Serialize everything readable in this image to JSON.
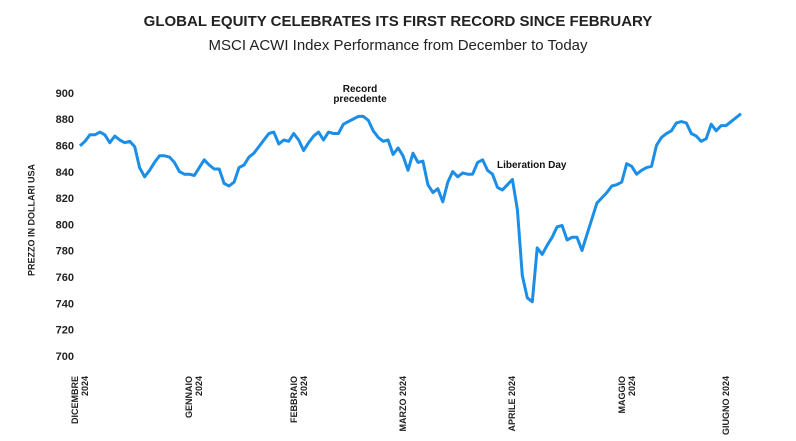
{
  "chart_data": {
    "type": "line",
    "title": "GLOBAL EQUITY CELEBRATES ITS FIRST RECORD SINCE FEBRUARY",
    "subtitle": "MSCI ACWI Index Performance from December to Today",
    "y_label": "PREZZO IN DOLLARI USA",
    "annotations": [
      "Record precedente",
      "Liberation Day"
    ],
    "categories": [
      "DICEMBRE 2024",
      null,
      null,
      null,
      null,
      null,
      null,
      null,
      null,
      null,
      null,
      null,
      null,
      null,
      null,
      null,
      null,
      null,
      null,
      null,
      null,
      null,
      null,
      "GENNAIO 2024",
      null,
      null,
      null,
      null,
      null,
      null,
      null,
      null,
      null,
      null,
      null,
      null,
      null,
      null,
      null,
      null,
      null,
      null,
      null,
      null,
      "FEBBRAIO 2024",
      null,
      null,
      null,
      null,
      null,
      null,
      null,
      null,
      null,
      null,
      null,
      null,
      null,
      null,
      null,
      null,
      null,
      null,
      null,
      null,
      null,
      "MARZO 2024",
      null,
      null,
      null,
      null,
      null,
      null,
      null,
      null,
      null,
      null,
      null,
      null,
      null,
      null,
      null,
      null,
      null,
      null,
      null,
      null,
      null,
      "APRILE 2024",
      null,
      null,
      null,
      null,
      null,
      null,
      null,
      null,
      null,
      null,
      null,
      null,
      null,
      null,
      null,
      null,
      null,
      null,
      null,
      null,
      null,
      "MAGGIO 2024",
      null,
      null,
      null,
      null,
      null,
      null,
      null,
      null,
      null,
      null,
      null,
      null,
      null,
      null,
      null,
      null,
      null,
      null,
      null,
      null,
      "GIUGNO 2024",
      null,
      null
    ],
    "series": [
      {
        "name": "MSCI ACWI",
        "color": "#1b8ee8",
        "values": [
          860.5,
          864,
          869,
          869,
          871,
          869,
          863,
          868,
          865,
          863,
          864,
          860,
          844,
          837,
          842,
          848,
          853,
          853,
          852,
          848,
          841,
          839,
          839,
          838,
          844,
          850,
          846,
          843,
          843,
          832,
          830,
          833,
          844,
          846,
          852,
          855,
          860,
          865,
          870,
          871,
          862,
          865,
          864,
          870,
          865,
          857,
          863,
          868,
          871,
          865,
          871,
          870,
          870,
          877,
          879,
          881,
          883,
          883,
          880,
          872,
          867,
          864,
          865,
          854,
          859,
          853,
          842,
          855,
          848,
          849,
          831,
          825,
          828,
          818,
          833,
          841,
          837,
          840,
          839,
          839,
          848,
          850,
          842,
          839,
          829,
          827,
          831,
          835,
          812,
          762,
          745,
          742,
          783,
          778,
          785,
          791,
          799,
          800,
          789,
          791,
          791,
          781,
          793,
          805,
          817,
          821,
          825,
          830,
          831,
          833,
          847,
          845,
          839,
          842,
          844,
          845,
          861,
          867,
          870,
          872,
          878,
          879,
          878,
          870,
          868,
          864,
          866,
          877,
          872,
          876,
          876,
          879,
          882,
          885
        ]
      }
    ],
    "ylim": [
      700,
      900
    ],
    "yticks": [
      700,
      720,
      740,
      760,
      780,
      800,
      820,
      840,
      860,
      880,
      900
    ],
    "grid": false
  }
}
